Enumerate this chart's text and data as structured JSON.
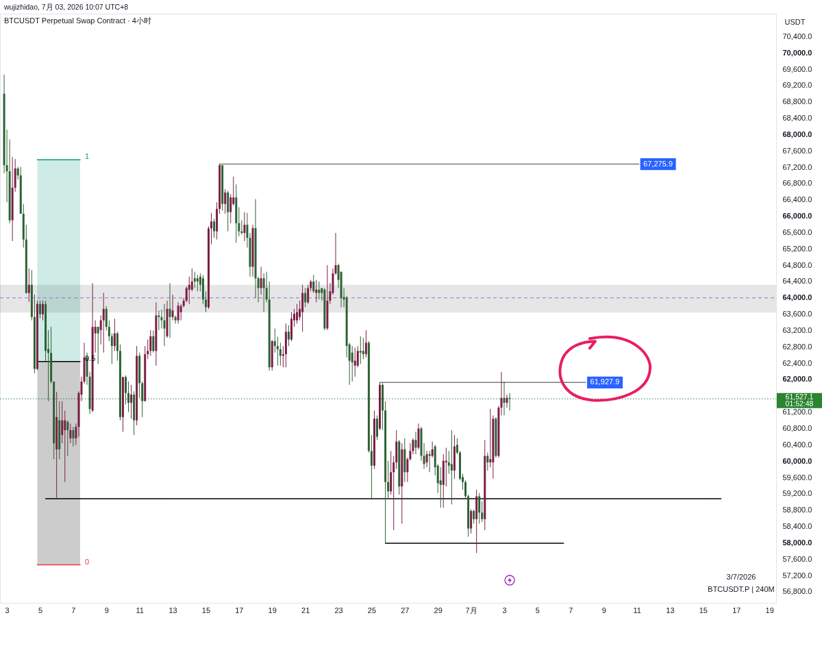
{
  "chart_data": {
    "type": "candlestick",
    "title": "BTCUSDT Perpetual Swap Contract · 4小时",
    "subtitle": "wujizhidao, 7月 03, 2026 10:07 UTC+8",
    "ylabel": "USDT",
    "x": [
      "2026-06-02T20:00",
      "2026-06-03T00:00",
      "2026-06-03T04:00",
      "2026-06-03T08:00",
      "2026-06-03T12:00",
      "2026-06-03T16:00",
      "2026-06-03T20:00",
      "2026-06-04T00:00",
      "2026-06-04T04:00",
      "2026-06-04T08:00",
      "2026-06-04T12:00",
      "2026-06-04T16:00",
      "2026-06-04T20:00",
      "2026-06-05T00:00",
      "2026-06-05T04:00",
      "2026-06-05T08:00",
      "2026-06-05T12:00",
      "2026-06-05T16:00",
      "2026-06-05T20:00",
      "2026-06-06T00:00",
      "2026-06-06T04:00",
      "2026-06-06T08:00",
      "2026-06-06T12:00",
      "2026-06-06T16:00",
      "2026-06-06T20:00",
      "2026-06-07T00:00",
      "2026-06-07T04:00",
      "2026-06-07T08:00",
      "2026-06-07T12:00",
      "2026-06-07T16:00",
      "2026-06-07T20:00",
      "2026-06-08T00:00",
      "2026-06-08T04:00",
      "2026-06-08T08:00",
      "2026-06-08T12:00",
      "2026-06-08T16:00",
      "2026-06-08T20:00",
      "2026-06-09T00:00",
      "2026-06-09T04:00",
      "2026-06-09T08:00",
      "2026-06-09T12:00",
      "2026-06-09T16:00",
      "2026-06-09T20:00",
      "2026-06-10T00:00",
      "2026-06-10T04:00",
      "2026-06-10T08:00",
      "2026-06-10T12:00",
      "2026-06-10T16:00",
      "2026-06-10T20:00",
      "2026-06-11T00:00",
      "2026-06-11T04:00",
      "2026-06-11T08:00",
      "2026-06-11T12:00",
      "2026-06-11T16:00",
      "2026-06-11T20:00",
      "2026-06-12T00:00",
      "2026-06-12T04:00",
      "2026-06-12T08:00",
      "2026-06-12T12:00",
      "2026-06-12T16:00",
      "2026-06-12T20:00",
      "2026-06-13T00:00",
      "2026-06-13T04:00",
      "2026-06-13T08:00",
      "2026-06-13T12:00",
      "2026-06-13T16:00",
      "2026-06-13T20:00",
      "2026-06-14T00:00",
      "2026-06-14T04:00",
      "2026-06-14T08:00",
      "2026-06-14T12:00",
      "2026-06-14T16:00",
      "2026-06-14T20:00",
      "2026-06-15T00:00",
      "2026-06-15T04:00",
      "2026-06-15T08:00",
      "2026-06-15T12:00",
      "2026-06-15T16:00",
      "2026-06-15T20:00",
      "2026-06-16T00:00",
      "2026-06-16T04:00",
      "2026-06-16T08:00",
      "2026-06-16T12:00",
      "2026-06-16T16:00",
      "2026-06-16T20:00",
      "2026-06-17T00:00",
      "2026-06-17T04:00",
      "2026-06-17T08:00",
      "2026-06-17T12:00",
      "2026-06-17T16:00",
      "2026-06-17T20:00",
      "2026-06-18T00:00",
      "2026-06-18T04:00",
      "2026-06-18T08:00",
      "2026-06-18T12:00",
      "2026-06-18T16:00",
      "2026-06-18T20:00",
      "2026-06-19T00:00",
      "2026-06-19T04:00",
      "2026-06-19T08:00",
      "2026-06-19T12:00",
      "2026-06-19T16:00",
      "2026-06-19T20:00",
      "2026-06-20T00:00",
      "2026-06-20T04:00",
      "2026-06-20T08:00",
      "2026-06-20T12:00",
      "2026-06-20T16:00",
      "2026-06-20T20:00",
      "2026-06-21T00:00",
      "2026-06-21T04:00",
      "2026-06-21T08:00",
      "2026-06-21T12:00",
      "2026-06-21T16:00",
      "2026-06-21T20:00",
      "2026-06-22T00:00",
      "2026-06-22T04:00",
      "2026-06-22T08:00",
      "2026-06-22T12:00",
      "2026-06-22T16:00",
      "2026-06-22T20:00",
      "2026-06-23T00:00",
      "2026-06-23T04:00",
      "2026-06-23T08:00",
      "2026-06-23T12:00",
      "2026-06-23T16:00",
      "2026-06-23T20:00",
      "2026-06-24T00:00",
      "2026-06-24T04:00",
      "2026-06-24T08:00",
      "2026-06-24T12:00",
      "2026-06-24T16:00",
      "2026-06-24T20:00",
      "2026-06-25T00:00",
      "2026-06-25T04:00",
      "2026-06-25T08:00",
      "2026-06-25T12:00",
      "2026-06-25T16:00",
      "2026-06-25T20:00",
      "2026-06-26T00:00",
      "2026-06-26T04:00",
      "2026-06-26T08:00",
      "2026-06-26T12:00",
      "2026-06-26T16:00",
      "2026-06-26T20:00",
      "2026-06-27T00:00",
      "2026-06-27T04:00",
      "2026-06-27T08:00",
      "2026-06-27T12:00",
      "2026-06-27T16:00",
      "2026-06-27T20:00",
      "2026-06-28T00:00",
      "2026-06-28T04:00",
      "2026-06-28T08:00",
      "2026-06-28T12:00",
      "2026-06-28T16:00",
      "2026-06-28T20:00",
      "2026-06-29T00:00",
      "2026-06-29T04:00",
      "2026-06-29T08:00",
      "2026-06-29T12:00",
      "2026-06-29T16:00",
      "2026-06-29T20:00",
      "2026-06-30T00:00",
      "2026-06-30T04:00",
      "2026-06-30T08:00",
      "2026-06-30T12:00",
      "2026-06-30T16:00",
      "2026-06-30T20:00",
      "2026-07-01T00:00",
      "2026-07-01T04:00",
      "2026-07-01T08:00",
      "2026-07-01T12:00",
      "2026-07-01T16:00",
      "2026-07-01T20:00",
      "2026-07-02T00:00",
      "2026-07-02T04:00",
      "2026-07-02T08:00",
      "2026-07-02T12:00",
      "2026-07-02T16:00",
      "2026-07-02T20:00",
      "2026-07-03T00:00",
      "2026-07-03T04:00",
      "2026-07-03T08:00"
    ],
    "ohlc": [
      [
        69000,
        69470,
        67050,
        67250
      ],
      [
        67250,
        68120,
        66340,
        67100
      ],
      [
        67100,
        67880,
        65830,
        65900
      ],
      [
        65900,
        67450,
        65390,
        66700
      ],
      [
        66700,
        67400,
        66600,
        67170
      ],
      [
        67170,
        67210,
        66900,
        67000
      ],
      [
        67000,
        67210,
        66060,
        66060
      ],
      [
        66060,
        66300,
        65230,
        65430
      ],
      [
        65430,
        65790,
        64100,
        64120
      ],
      [
        64120,
        64720,
        63900,
        64320
      ],
      [
        64320,
        64680,
        63450,
        63530
      ],
      [
        63530,
        64080,
        62150,
        62260
      ],
      [
        62260,
        63930,
        62230,
        63850
      ],
      [
        63850,
        63930,
        63500,
        63600
      ],
      [
        63600,
        63930,
        63450,
        63850
      ],
      [
        63850,
        63930,
        62460,
        62700
      ],
      [
        62750,
        63210,
        61470,
        62650
      ],
      [
        62650,
        63290,
        61910,
        61950
      ],
      [
        61950,
        61950,
        60050,
        60440
      ],
      [
        60290,
        61700,
        59100,
        61080
      ],
      [
        61000,
        61470,
        60050,
        60290
      ],
      [
        60640,
        61470,
        60440,
        61000
      ],
      [
        60760,
        61240,
        59490,
        61000
      ],
      [
        60960,
        61000,
        60130,
        60760
      ],
      [
        60560,
        60920,
        60440,
        60760
      ],
      [
        60760,
        60840,
        60360,
        60560
      ],
      [
        60560,
        60920,
        60400,
        60840
      ],
      [
        60840,
        61710,
        60600,
        61670
      ],
      [
        61630,
        62070,
        61470,
        61950
      ],
      [
        61950,
        62900,
        61900,
        62540
      ],
      [
        62540,
        62660,
        61870,
        62070
      ],
      [
        62070,
        62190,
        61160,
        61280
      ],
      [
        61240,
        64360,
        61200,
        63290
      ],
      [
        63130,
        63450,
        62660,
        63290
      ],
      [
        63290,
        63290,
        62380,
        63130
      ],
      [
        63210,
        63570,
        62860,
        63450
      ],
      [
        63450,
        64120,
        62660,
        63730
      ],
      [
        63730,
        63800,
        63200,
        63290
      ],
      [
        63290,
        63450,
        62940,
        63060
      ],
      [
        63060,
        63130,
        62380,
        62820
      ],
      [
        62820,
        63490,
        62700,
        63130
      ],
      [
        63130,
        63170,
        62460,
        62700
      ],
      [
        62700,
        62860,
        61000,
        61080
      ],
      [
        61080,
        62070,
        60720,
        62060
      ],
      [
        62060,
        62100,
        61390,
        61670
      ],
      [
        61670,
        61950,
        61200,
        61430
      ],
      [
        61430,
        61870,
        61040,
        61630
      ],
      [
        61630,
        61710,
        60640,
        61000
      ],
      [
        61000,
        62820,
        60880,
        62580
      ],
      [
        62580,
        62660,
        61550,
        61910
      ],
      [
        61910,
        61950,
        61080,
        61470
      ],
      [
        61470,
        62820,
        61470,
        62620
      ],
      [
        62620,
        62980,
        62500,
        62700
      ],
      [
        62700,
        63210,
        62580,
        63060
      ],
      [
        63060,
        63200,
        62660,
        62700
      ],
      [
        62700,
        63890,
        62340,
        63570
      ],
      [
        63570,
        63690,
        63210,
        63530
      ],
      [
        63530,
        63710,
        63250,
        63450
      ],
      [
        63450,
        63850,
        62820,
        63250
      ],
      [
        63060,
        63930,
        63020,
        63730
      ],
      [
        63730,
        64360,
        63020,
        63530
      ],
      [
        63530,
        64080,
        63450,
        63690
      ],
      [
        63530,
        63570,
        63370,
        63450
      ],
      [
        63450,
        63890,
        63370,
        63810
      ],
      [
        63650,
        63850,
        63450,
        63800
      ],
      [
        63800,
        64000,
        63770,
        63930
      ],
      [
        63930,
        64280,
        63890,
        64240
      ],
      [
        64200,
        64520,
        63850,
        64320
      ],
      [
        64200,
        64720,
        64160,
        64400
      ],
      [
        64480,
        64640,
        64240,
        64400
      ],
      [
        64480,
        64560,
        64160,
        64400
      ],
      [
        64520,
        64600,
        64160,
        64320
      ],
      [
        64480,
        64560,
        63850,
        63960
      ],
      [
        63960,
        64160,
        63650,
        63770
      ],
      [
        63770,
        65750,
        63730,
        65700
      ],
      [
        65700,
        66080,
        65310,
        65870
      ],
      [
        65870,
        65940,
        65470,
        65630
      ],
      [
        65630,
        66340,
        65430,
        66180
      ],
      [
        66180,
        67275.9,
        66060,
        67250
      ],
      [
        67250,
        67250,
        66140,
        66300
      ],
      [
        66300,
        66660,
        66060,
        66580
      ],
      [
        66580,
        66620,
        65630,
        66100
      ],
      [
        66100,
        66540,
        65830,
        66460
      ],
      [
        66300,
        66970,
        66260,
        66460
      ],
      [
        66460,
        66780,
        65350,
        65830
      ],
      [
        65830,
        66220,
        65510,
        65630
      ],
      [
        65630,
        65900,
        65550,
        65590
      ],
      [
        65590,
        66100,
        65390,
        65790
      ],
      [
        65790,
        66080,
        65230,
        65470
      ],
      [
        65470,
        65590,
        64520,
        64760
      ],
      [
        64760,
        65790,
        64520,
        65710
      ],
      [
        65710,
        66420,
        64000,
        64480
      ],
      [
        64480,
        64520,
        63890,
        64240
      ],
      [
        64240,
        64760,
        64080,
        64480
      ],
      [
        64480,
        64600,
        63650,
        64240
      ],
      [
        64240,
        64640,
        63890,
        63960
      ],
      [
        63960,
        64400,
        62220,
        62300
      ],
      [
        62300,
        62970,
        62220,
        62940
      ],
      [
        62940,
        63250,
        62660,
        62820
      ],
      [
        62820,
        63050,
        62340,
        62740
      ],
      [
        62740,
        62900,
        62340,
        62580
      ],
      [
        62580,
        62820,
        62300,
        62620
      ],
      [
        62620,
        63370,
        62300,
        63170
      ],
      [
        63170,
        63330,
        62820,
        62980
      ],
      [
        62980,
        63650,
        62940,
        63490
      ],
      [
        63450,
        63730,
        63290,
        63610
      ],
      [
        63450,
        63850,
        63370,
        63650
      ],
      [
        63530,
        63930,
        63450,
        63730
      ],
      [
        63650,
        64320,
        63170,
        64120
      ],
      [
        64120,
        64240,
        63770,
        63890
      ],
      [
        63890,
        64320,
        63850,
        64240
      ],
      [
        64240,
        64440,
        64160,
        64400
      ],
      [
        64400,
        64560,
        64120,
        64160
      ],
      [
        64120,
        64440,
        63890,
        64200
      ],
      [
        64200,
        64400,
        63960,
        64120
      ],
      [
        64240,
        64240,
        63930,
        64120
      ],
      [
        64200,
        64240,
        63210,
        63250
      ],
      [
        63250,
        64800,
        63210,
        63930
      ],
      [
        63930,
        64360,
        63850,
        64160
      ],
      [
        64120,
        64720,
        64080,
        64600
      ],
      [
        64600,
        65590,
        64560,
        64800
      ],
      [
        64800,
        64840,
        64240,
        64440
      ],
      [
        64640,
        64640,
        63770,
        64000
      ],
      [
        64020,
        64240,
        63770,
        63960
      ],
      [
        64000,
        64050,
        62540,
        62820
      ],
      [
        62860,
        62900,
        61870,
        62460
      ],
      [
        62660,
        62820,
        61950,
        62420
      ],
      [
        62340,
        62780,
        62070,
        62460
      ],
      [
        62340,
        62820,
        62300,
        62700
      ],
      [
        62700,
        63060,
        62380,
        62660
      ],
      [
        62700,
        63020,
        62500,
        62620
      ],
      [
        62620,
        63210,
        62540,
        62900
      ],
      [
        62900,
        62940,
        60210,
        60250
      ],
      [
        60250,
        60640,
        59060,
        59890
      ],
      [
        59890,
        61240,
        59810,
        61040
      ],
      [
        61040,
        61120,
        60520,
        60600
      ],
      [
        60800,
        61927.9,
        60760,
        61870
      ],
      [
        61870,
        61910,
        60760,
        61240
      ],
      [
        61240,
        61470,
        57990,
        59490
      ],
      [
        59490,
        60010,
        59100,
        59260
      ],
      [
        59260,
        60250,
        59180,
        59730
      ],
      [
        59730,
        60130,
        58310,
        59970
      ],
      [
        59970,
        60760,
        59810,
        60480
      ],
      [
        60480,
        60520,
        59180,
        59380
      ],
      [
        59380,
        60440,
        58470,
        60290
      ],
      [
        60290,
        60560,
        59490,
        59730
      ],
      [
        59730,
        60090,
        59490,
        60050
      ],
      [
        60050,
        60440,
        60010,
        60250
      ],
      [
        60250,
        60560,
        60170,
        60520
      ],
      [
        60520,
        60720,
        60170,
        60330
      ],
      [
        60330,
        60920,
        60290,
        60800
      ],
      [
        60800,
        60840,
        60010,
        60130
      ],
      [
        60130,
        60440,
        59810,
        59930
      ],
      [
        59970,
        60250,
        59850,
        60170
      ],
      [
        60170,
        60250,
        59730,
        60130
      ],
      [
        60130,
        60480,
        60090,
        60290
      ],
      [
        60360,
        60400,
        59650,
        59850
      ],
      [
        59890,
        59930,
        59220,
        59460
      ],
      [
        59530,
        59850,
        58860,
        59420
      ],
      [
        59420,
        60170,
        58860,
        60010
      ],
      [
        59970,
        60330,
        59380,
        60010
      ],
      [
        59970,
        60250,
        59690,
        59890
      ],
      [
        59930,
        60760,
        58940,
        59770
      ],
      [
        59770,
        60640,
        59570,
        60360
      ],
      [
        60400,
        60560,
        60170,
        60210
      ],
      [
        60210,
        60250,
        59530,
        59570
      ],
      [
        59610,
        59690,
        59300,
        59490
      ],
      [
        59490,
        59530,
        59100,
        59140
      ],
      [
        59140,
        59180,
        58150,
        58350
      ],
      [
        58350,
        58820,
        58230,
        58780
      ],
      [
        58780,
        58820,
        58470,
        58580
      ],
      [
        58580,
        59300,
        57750,
        59140
      ],
      [
        59140,
        59220,
        58470,
        58740
      ],
      [
        58740,
        59020,
        58510,
        58580
      ],
      [
        58580,
        60520,
        58310,
        60130
      ],
      [
        60130,
        60210,
        59770,
        59970
      ],
      [
        59970,
        61280,
        59850,
        60050
      ],
      [
        59970,
        61120,
        59570,
        61040
      ],
      [
        61040,
        61080,
        60090,
        60130
      ],
      [
        60130,
        61350,
        60090,
        61310
      ],
      [
        61310,
        62185,
        61120,
        61550
      ],
      [
        61550,
        61950,
        61120,
        61430
      ],
      [
        61430,
        61630,
        61310,
        61550
      ],
      [
        61550,
        61670,
        61240,
        61527.1
      ]
    ],
    "colors": [
      "#2c6233",
      "#2c6233",
      "#2c6233",
      "#7b1e46",
      "#7b1e46",
      "#2c6233",
      "#2c6233",
      "#2c6233",
      "#2c6233",
      "#7b1e46",
      "#2c6233",
      "#2c6233",
      "#7b1e46",
      "#2c6233",
      "#7b1e46",
      "#2c6233",
      "#2c6233",
      "#2c6233",
      "#2c6233",
      "#7b1e46",
      "#2c6233",
      "#7b1e46",
      "#7b1e46",
      "#2c6233",
      "#7b1e46",
      "#2c6233",
      "#7b1e46",
      "#7b1e46",
      "#7b1e46",
      "#7b1e46",
      "#2c6233",
      "#2c6233",
      "#7b1e46",
      "#7b1e46",
      "#2c6233",
      "#7b1e46",
      "#7b1e46",
      "#2c6233",
      "#2c6233",
      "#2c6233",
      "#7b1e46",
      "#2c6233",
      "#2c6233",
      "#7b1e46",
      "#2c6233",
      "#2c6233",
      "#7b1e46",
      "#2c6233",
      "#7b1e46",
      "#2c6233",
      "#2c6233",
      "#7b1e46",
      "#7b1e46",
      "#7b1e46",
      "#2c6233",
      "#7b1e46",
      "#2c6233",
      "#2c6233",
      "#2c6233",
      "#7b1e46",
      "#2c6233",
      "#7b1e46",
      "#2c6233",
      "#7b1e46",
      "#7b1e46",
      "#7b1e46",
      "#7b1e46",
      "#7b1e46",
      "#7b1e46",
      "#2c6233",
      "#2c6233",
      "#2c6233",
      "#2c6233",
      "#2c6233",
      "#7b1e46",
      "#7b1e46",
      "#2c6233",
      "#7b1e46",
      "#7b1e46",
      "#2c6233",
      "#7b1e46",
      "#2c6233",
      "#7b1e46",
      "#7b1e46",
      "#2c6233",
      "#2c6233",
      "#2c6233",
      "#7b1e46",
      "#2c6233",
      "#2c6233",
      "#7b1e46",
      "#2c6233",
      "#2c6233",
      "#7b1e46",
      "#2c6233",
      "#2c6233",
      "#2c6233",
      "#7b1e46",
      "#2c6233",
      "#2c6233",
      "#2c6233",
      "#7b1e46",
      "#7b1e46",
      "#2c6233",
      "#7b1e46",
      "#7b1e46",
      "#7b1e46",
      "#7b1e46",
      "#7b1e46",
      "#2c6233",
      "#7b1e46",
      "#7b1e46",
      "#2c6233",
      "#7b1e46",
      "#2c6233",
      "#2c6233",
      "#2c6233",
      "#7b1e46",
      "#7b1e46",
      "#7b1e46",
      "#7b1e46",
      "#2c6233",
      "#2c6233",
      "#2c6233",
      "#2c6233",
      "#2c6233",
      "#2c6233",
      "#7b1e46",
      "#7b1e46",
      "#2c6233",
      "#2c6233",
      "#7b1e46",
      "#2c6233",
      "#2c6233",
      "#7b1e46",
      "#2c6233",
      "#7b1e46",
      "#2c6233",
      "#2c6233",
      "#2c6233",
      "#7b1e46",
      "#7b1e46",
      "#7b1e46",
      "#2c6233",
      "#7b1e46",
      "#2c6233",
      "#7b1e46",
      "#7b1e46",
      "#7b1e46",
      "#2c6233",
      "#7b1e46",
      "#2c6233",
      "#2c6233",
      "#7b1e46",
      "#2c6233",
      "#7b1e46",
      "#2c6233",
      "#2c6233",
      "#2c6233",
      "#7b1e46",
      "#7b1e46",
      "#2c6233",
      "#2c6233",
      "#7b1e46",
      "#2c6233",
      "#2c6233",
      "#2c6233",
      "#2c6233",
      "#2c6233",
      "#7b1e46",
      "#2c6233",
      "#7b1e46",
      "#2c6233",
      "#2c6233",
      "#7b1e46",
      "#2c6233",
      "#7b1e46",
      "#7b1e46",
      "#2c6233",
      "#7b1e46",
      "#7b1e46",
      "#2c6233",
      "#7b1e46",
      "#2c6233"
    ],
    "series": [
      {
        "type": "line",
        "color": "#787b86",
        "x": [
          "2026-06-15T20:00",
          "2026-07-11T03:00"
        ],
        "values": [
          67275.9,
          67275.9
        ]
      },
      {
        "type": "line",
        "color": "#787b86",
        "x": [
          "2026-06-25T12:00",
          "2026-07-07T22:00"
        ],
        "values": [
          61927.9,
          61927.9
        ]
      },
      {
        "type": "line",
        "color": "#000000",
        "x": [
          "2026-06-05T08:00",
          "2026-07-16T02:00"
        ],
        "values": [
          59080,
          59080
        ]
      },
      {
        "type": "line",
        "color": "#000000",
        "x": [
          "2026-06-25T20:00",
          "2026-07-06T14:00"
        ],
        "values": [
          57990,
          57990
        ]
      },
      {
        "type": "line",
        "name": "1",
        "color": "#089981",
        "x": [
          "2026-06-04T20:00",
          "2026-06-07T10:00"
        ],
        "values": [
          67380,
          67380
        ],
        "lower": [
          62440,
          62440
        ],
        "upper": [
          67380,
          67380
        ]
      },
      {
        "type": "line",
        "name": "0.5",
        "color": "#000000",
        "x": [
          "2026-06-04T20:00",
          "2026-06-07T10:00"
        ],
        "values": [
          62440,
          62440
        ],
        "lower": [
          57460,
          57460
        ],
        "upper": [
          62440,
          62440
        ]
      },
      {
        "type": "line",
        "name": "0",
        "color": "#f23645",
        "x": [
          "2026-06-04T20:00",
          "2026-06-07T10:00"
        ],
        "values": [
          57460,
          57460
        ]
      }
    ],
    "bands": [
      {
        "axis": "y",
        "from": 63640,
        "to": 64320,
        "color": "#e6e6e6"
      }
    ],
    "ref_lines": [
      {
        "axis": "y",
        "value": 64000,
        "color": "#9c6bd6",
        "line_style": "dashed"
      },
      {
        "axis": "y",
        "value": 61527.1,
        "label": "61,527.1",
        "color": "#2a8430",
        "line_style": "dotted"
      }
    ],
    "annotations": [
      {
        "text": "67,275.9",
        "x": "2026-07-11T03:00",
        "y": 67275.9
      },
      {
        "text": "61,927.9",
        "x": "2026-07-07T22:00",
        "y": 61927.9
      },
      "01:52:48",
      "3/7/2026",
      "BTCUSDT.P | 240M"
    ],
    "xlim": [
      "2026-06-02T14:00",
      "2026-07-19T09:45"
    ],
    "xticks": [
      {
        "value": "2026-06-03T00:00",
        "label": "3"
      },
      {
        "value": "2026-06-05T00:00",
        "label": "5"
      },
      {
        "value": "2026-06-07T00:00",
        "label": "7"
      },
      {
        "value": "2026-06-09T00:00",
        "label": "9"
      },
      {
        "value": "2026-06-11T00:00",
        "label": "11"
      },
      {
        "value": "2026-06-13T00:00",
        "label": "13"
      },
      {
        "value": "2026-06-15T00:00",
        "label": "15"
      },
      {
        "value": "2026-06-17T00:00",
        "label": "17"
      },
      {
        "value": "2026-06-19T00:00",
        "label": "19"
      },
      {
        "value": "2026-06-21T00:00",
        "label": "21"
      },
      {
        "value": "2026-06-23T00:00",
        "label": "23"
      },
      {
        "value": "2026-06-25T00:00",
        "label": "25"
      },
      {
        "value": "2026-06-27T00:00",
        "label": "27"
      },
      {
        "value": "2026-06-29T00:00",
        "label": "29"
      },
      {
        "value": "2026-07-01T00:00",
        "label": "7月"
      },
      {
        "value": "2026-07-03T00:00",
        "label": "3"
      },
      {
        "value": "2026-07-05T00:00",
        "label": "5"
      },
      {
        "value": "2026-07-07T00:00",
        "label": "7"
      },
      {
        "value": "2026-07-09T00:00",
        "label": "9"
      },
      {
        "value": "2026-07-11T00:00",
        "label": "11"
      },
      {
        "value": "2026-07-13T00:00",
        "label": "13"
      },
      {
        "value": "2026-07-15T00:00",
        "label": "15"
      },
      {
        "value": "2026-07-17T00:00",
        "label": "17"
      },
      {
        "value": "2026-07-19T00:00",
        "label": "19"
      }
    ],
    "ylim": [
      56530,
      70960
    ],
    "yticks": [
      {
        "value": 56800,
        "label": "56,800.0"
      },
      {
        "value": 57200,
        "label": "57,200.0"
      },
      {
        "value": 57600,
        "label": "57,600.0"
      },
      {
        "value": 58000,
        "label": "58,000.0"
      },
      {
        "value": 58400,
        "label": "58,400.0"
      },
      {
        "value": 58800,
        "label": "58,800.0"
      },
      {
        "value": 59200,
        "label": "59,200.0"
      },
      {
        "value": 59600,
        "label": "59,600.0"
      },
      {
        "value": 60000,
        "label": "60,000.0"
      },
      {
        "value": 60400,
        "label": "60,400.0"
      },
      {
        "value": 60800,
        "label": "60,800.0"
      },
      {
        "value": 61200,
        "label": "61,200.0"
      },
      {
        "value": 62000,
        "label": "62,000.0"
      },
      {
        "value": 62400,
        "label": "62,400.0"
      },
      {
        "value": 62800,
        "label": "62,800.0"
      },
      {
        "value": 63200,
        "label": "63,200.0"
      },
      {
        "value": 63600,
        "label": "63,600.0"
      },
      {
        "value": 64000,
        "label": "64,000.0"
      },
      {
        "value": 64400,
        "label": "64,400.0"
      },
      {
        "value": 64800,
        "label": "64,800.0"
      },
      {
        "value": 65200,
        "label": "65,200.0"
      },
      {
        "value": 65600,
        "label": "65,600.0"
      },
      {
        "value": 66000,
        "label": "66,000.0"
      },
      {
        "value": 66400,
        "label": "66,400.0"
      },
      {
        "value": 66800,
        "label": "66,800.0"
      },
      {
        "value": 67200,
        "label": "67,200.0"
      },
      {
        "value": 67600,
        "label": "67,600.0"
      },
      {
        "value": 68000,
        "label": "68,000.0"
      },
      {
        "value": 68400,
        "label": "68,400.0"
      },
      {
        "value": 68800,
        "label": "68,800.0"
      },
      {
        "value": 69200,
        "label": "69,200.0"
      },
      {
        "value": 69600,
        "label": "69,600.0"
      },
      {
        "value": 70000,
        "label": "70,000.0"
      },
      {
        "value": 70400,
        "label": "70,400.0"
      }
    ]
  }
}
